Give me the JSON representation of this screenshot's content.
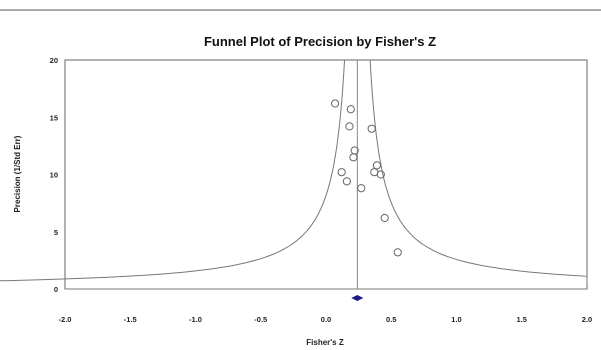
{
  "chart_data": {
    "type": "scatter",
    "title": "Funnel Plot of Precision by Fisher's Z",
    "xlabel": "Fisher's Z",
    "ylabel": "Precision (1/Std Err)",
    "xlim": [
      -2.0,
      2.0
    ],
    "ylim": [
      0,
      20
    ],
    "x_ticks": [
      "-2.0",
      "-1.5",
      "-1.0",
      "-0.5",
      "0.0",
      "0.5",
      "1.0",
      "1.5",
      "2.0"
    ],
    "y_ticks": [
      "0",
      "5",
      "10",
      "15",
      "20"
    ],
    "grid": false,
    "summary_effect": 0.24,
    "summary_marker": "diamond",
    "points": [
      {
        "x": 0.07,
        "y": 16.2
      },
      {
        "x": 0.19,
        "y": 15.7
      },
      {
        "x": 0.18,
        "y": 14.2
      },
      {
        "x": 0.35,
        "y": 14.0
      },
      {
        "x": 0.22,
        "y": 12.1
      },
      {
        "x": 0.21,
        "y": 11.5
      },
      {
        "x": 0.39,
        "y": 10.8
      },
      {
        "x": 0.12,
        "y": 10.2
      },
      {
        "x": 0.37,
        "y": 10.2
      },
      {
        "x": 0.42,
        "y": 10.0
      },
      {
        "x": 0.16,
        "y": 9.4
      },
      {
        "x": 0.27,
        "y": 8.8
      },
      {
        "x": 0.45,
        "y": 6.2
      },
      {
        "x": 0.55,
        "y": 3.2
      }
    ]
  }
}
